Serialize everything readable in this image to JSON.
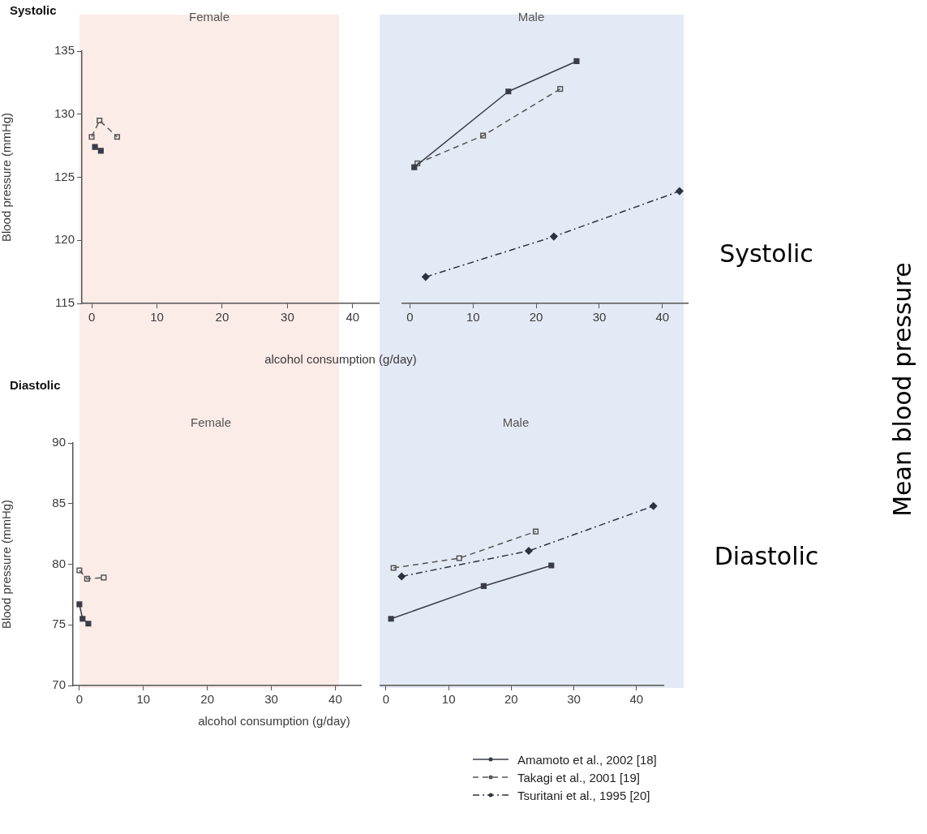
{
  "chart_data": [
    {
      "type": "line",
      "title": "Female",
      "xlabel": "alcohol consumption (g/day)",
      "ylabel": "Blood pressure (mmHg)",
      "xlim": [
        -1.5,
        44
      ],
      "xticks": [
        0,
        10,
        20,
        30,
        40
      ],
      "ylim": [
        115,
        135
      ],
      "yticks": [
        115,
        120,
        125,
        130,
        135
      ],
      "annotations": [
        "Systolic"
      ],
      "series": [
        {
          "color": "#3a3d48",
          "marker": "square",
          "line_style": "solid",
          "x": [
            0.5,
            1.4
          ],
          "values": [
            127.4,
            127.1
          ]
        },
        {
          "color": "#555555",
          "marker": "square-open",
          "line_style": "dashed",
          "x": [
            0,
            1.2,
            3.9
          ],
          "values": [
            128.2,
            129.5,
            128.2
          ]
        }
      ]
    },
    {
      "type": "line",
      "title": "Male",
      "tick_labels": "x",
      "xlim": [
        -1.2,
        44
      ],
      "xticks": [
        0,
        10,
        20,
        30,
        40
      ],
      "ylim": [
        115,
        135
      ],
      "yticks": [
        115,
        120,
        125,
        130,
        135
      ],
      "annotations": [
        "Systolic",
        "Mean blood pressure"
      ],
      "series": [
        {
          "color": "#3a3d48",
          "marker": "square",
          "line_style": "solid",
          "x": [
            0.7,
            15.6,
            26.4
          ],
          "values": [
            125.8,
            131.8,
            134.2
          ]
        },
        {
          "color": "#555555",
          "marker": "square-open",
          "line_style": "dashed",
          "x": [
            1.2,
            11.6,
            23.8
          ],
          "values": [
            126.1,
            128.3,
            132.0
          ]
        },
        {
          "color": "#2e3240",
          "marker": "diamond",
          "line_style": "dashdot",
          "x": [
            2.5,
            22.8,
            42.7
          ],
          "values": [
            117.1,
            120.3,
            123.9
          ]
        }
      ]
    },
    {
      "type": "line",
      "title": "Female",
      "xlabel": "alcohol consumption (g/day)",
      "ylabel": "Blood pressure (mmHg)",
      "xlim": [
        -1,
        44
      ],
      "xticks": [
        0,
        10,
        20,
        30,
        40
      ],
      "ylim": [
        70,
        90
      ],
      "yticks": [
        70,
        75,
        80,
        85,
        90
      ],
      "annotations": [
        "Diastolic"
      ],
      "series": [
        {
          "color": "#3a3d48",
          "marker": "square",
          "line_style": "solid",
          "x": [
            0,
            0.5,
            1.4
          ],
          "values": [
            76.7,
            75.5,
            75.1
          ]
        },
        {
          "color": "#555555",
          "marker": "square-open",
          "line_style": "dashed",
          "x": [
            0,
            1.2,
            3.8
          ],
          "values": [
            79.5,
            78.8,
            78.9
          ]
        }
      ]
    },
    {
      "type": "line",
      "title": "Male",
      "tick_labels": "x",
      "xlim": [
        -0.9,
        44.3
      ],
      "xticks": [
        0,
        10,
        20,
        30,
        40
      ],
      "ylim": [
        70,
        90
      ],
      "yticks": [
        70,
        75,
        80,
        85,
        90
      ],
      "annotations": [
        "Diastolic"
      ],
      "legend": "bottom right",
      "series": [
        {
          "name": "Amamoto et al., 2002 [18]",
          "color": "#3a3d48",
          "marker": "square",
          "line_style": "solid",
          "x": [
            0.8,
            15.6,
            26.4
          ],
          "values": [
            75.5,
            78.2,
            79.9
          ]
        },
        {
          "name": "Takagi et al., 2001 [19]",
          "color": "#555555",
          "marker": "square-open",
          "line_style": "dashed",
          "x": [
            1.2,
            11.7,
            23.9
          ],
          "values": [
            79.7,
            80.5,
            82.7
          ]
        },
        {
          "name": "Tsuritani et al., 1995 [20]",
          "color": "#2e3240",
          "marker": "diamond",
          "line_style": "dashdot",
          "x": [
            2.5,
            22.8,
            42.7
          ],
          "values": [
            79.0,
            81.1,
            84.8
          ]
        }
      ]
    }
  ]
}
